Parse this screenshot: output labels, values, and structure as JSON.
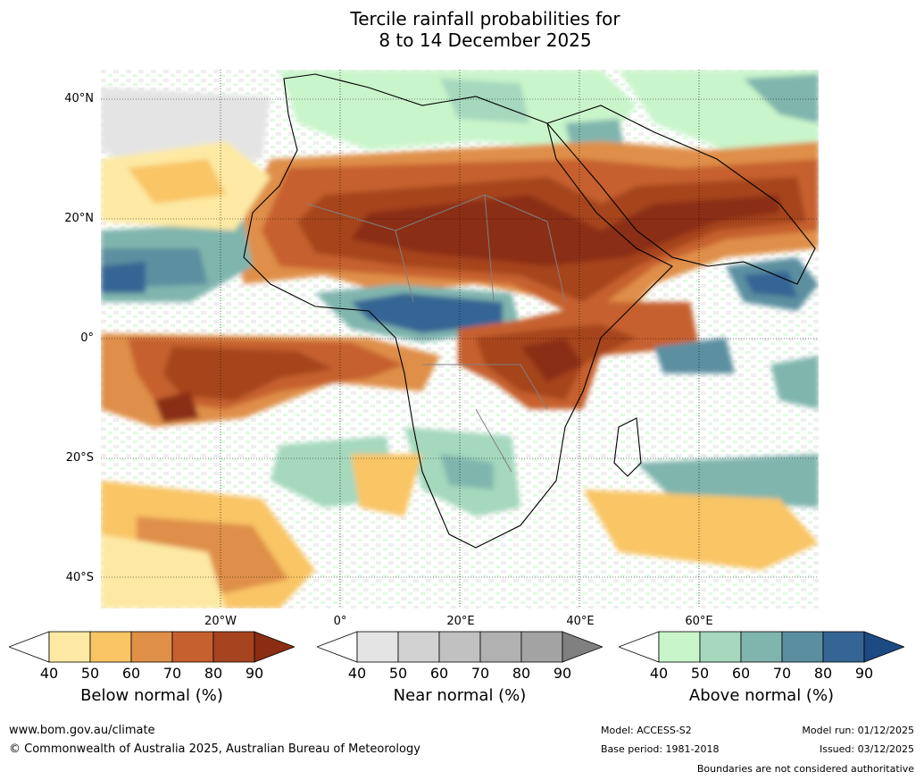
{
  "title_line1": "Tercile rainfall probabilities for",
  "title_line2": "8 to 14 December 2025",
  "map": {
    "region": "Africa",
    "lat_labels": [
      "40°N",
      "20°N",
      "0°",
      "20°S",
      "40°S"
    ],
    "lon_labels": [
      "20°W",
      "0°",
      "20°E",
      "40°E",
      "60°E"
    ]
  },
  "colorbars": [
    {
      "name": "below",
      "title": "Below normal (%)",
      "ticks": [
        "40",
        "50",
        "60",
        "70",
        "80",
        "90"
      ],
      "colors": [
        "#ffffff",
        "#fde9a3",
        "#f9c565",
        "#df8f48",
        "#c6602f",
        "#a6441f",
        "#8b2d13"
      ]
    },
    {
      "name": "near",
      "title": "Near normal (%)",
      "ticks": [
        "40",
        "50",
        "60",
        "70",
        "80",
        "90"
      ],
      "colors": [
        "#ffffff",
        "#e4e4e4",
        "#d2d2d2",
        "#c1c1c1",
        "#b1b1b1",
        "#a3a3a3",
        "#808080"
      ]
    },
    {
      "name": "above",
      "title": "Above normal (%)",
      "ticks": [
        "40",
        "50",
        "60",
        "70",
        "80",
        "90"
      ],
      "colors": [
        "#ffffff",
        "#c9f5cb",
        "#a5d8bd",
        "#80b5ad",
        "#5b8fa0",
        "#346594",
        "#1c4a82"
      ]
    }
  ],
  "footer": {
    "url": "www.bom.gov.au/climate",
    "copyright": "© Commonwealth of Australia 2025, Australian Bureau of Meteorology",
    "model": "Model: ACCESS-S2",
    "base_period": "Base period: 1981-2018",
    "model_run": "Model run: 01/12/2025",
    "issued": "Issued: 03/12/2025",
    "disclaimer": "Boundaries are not considered authoritative"
  }
}
